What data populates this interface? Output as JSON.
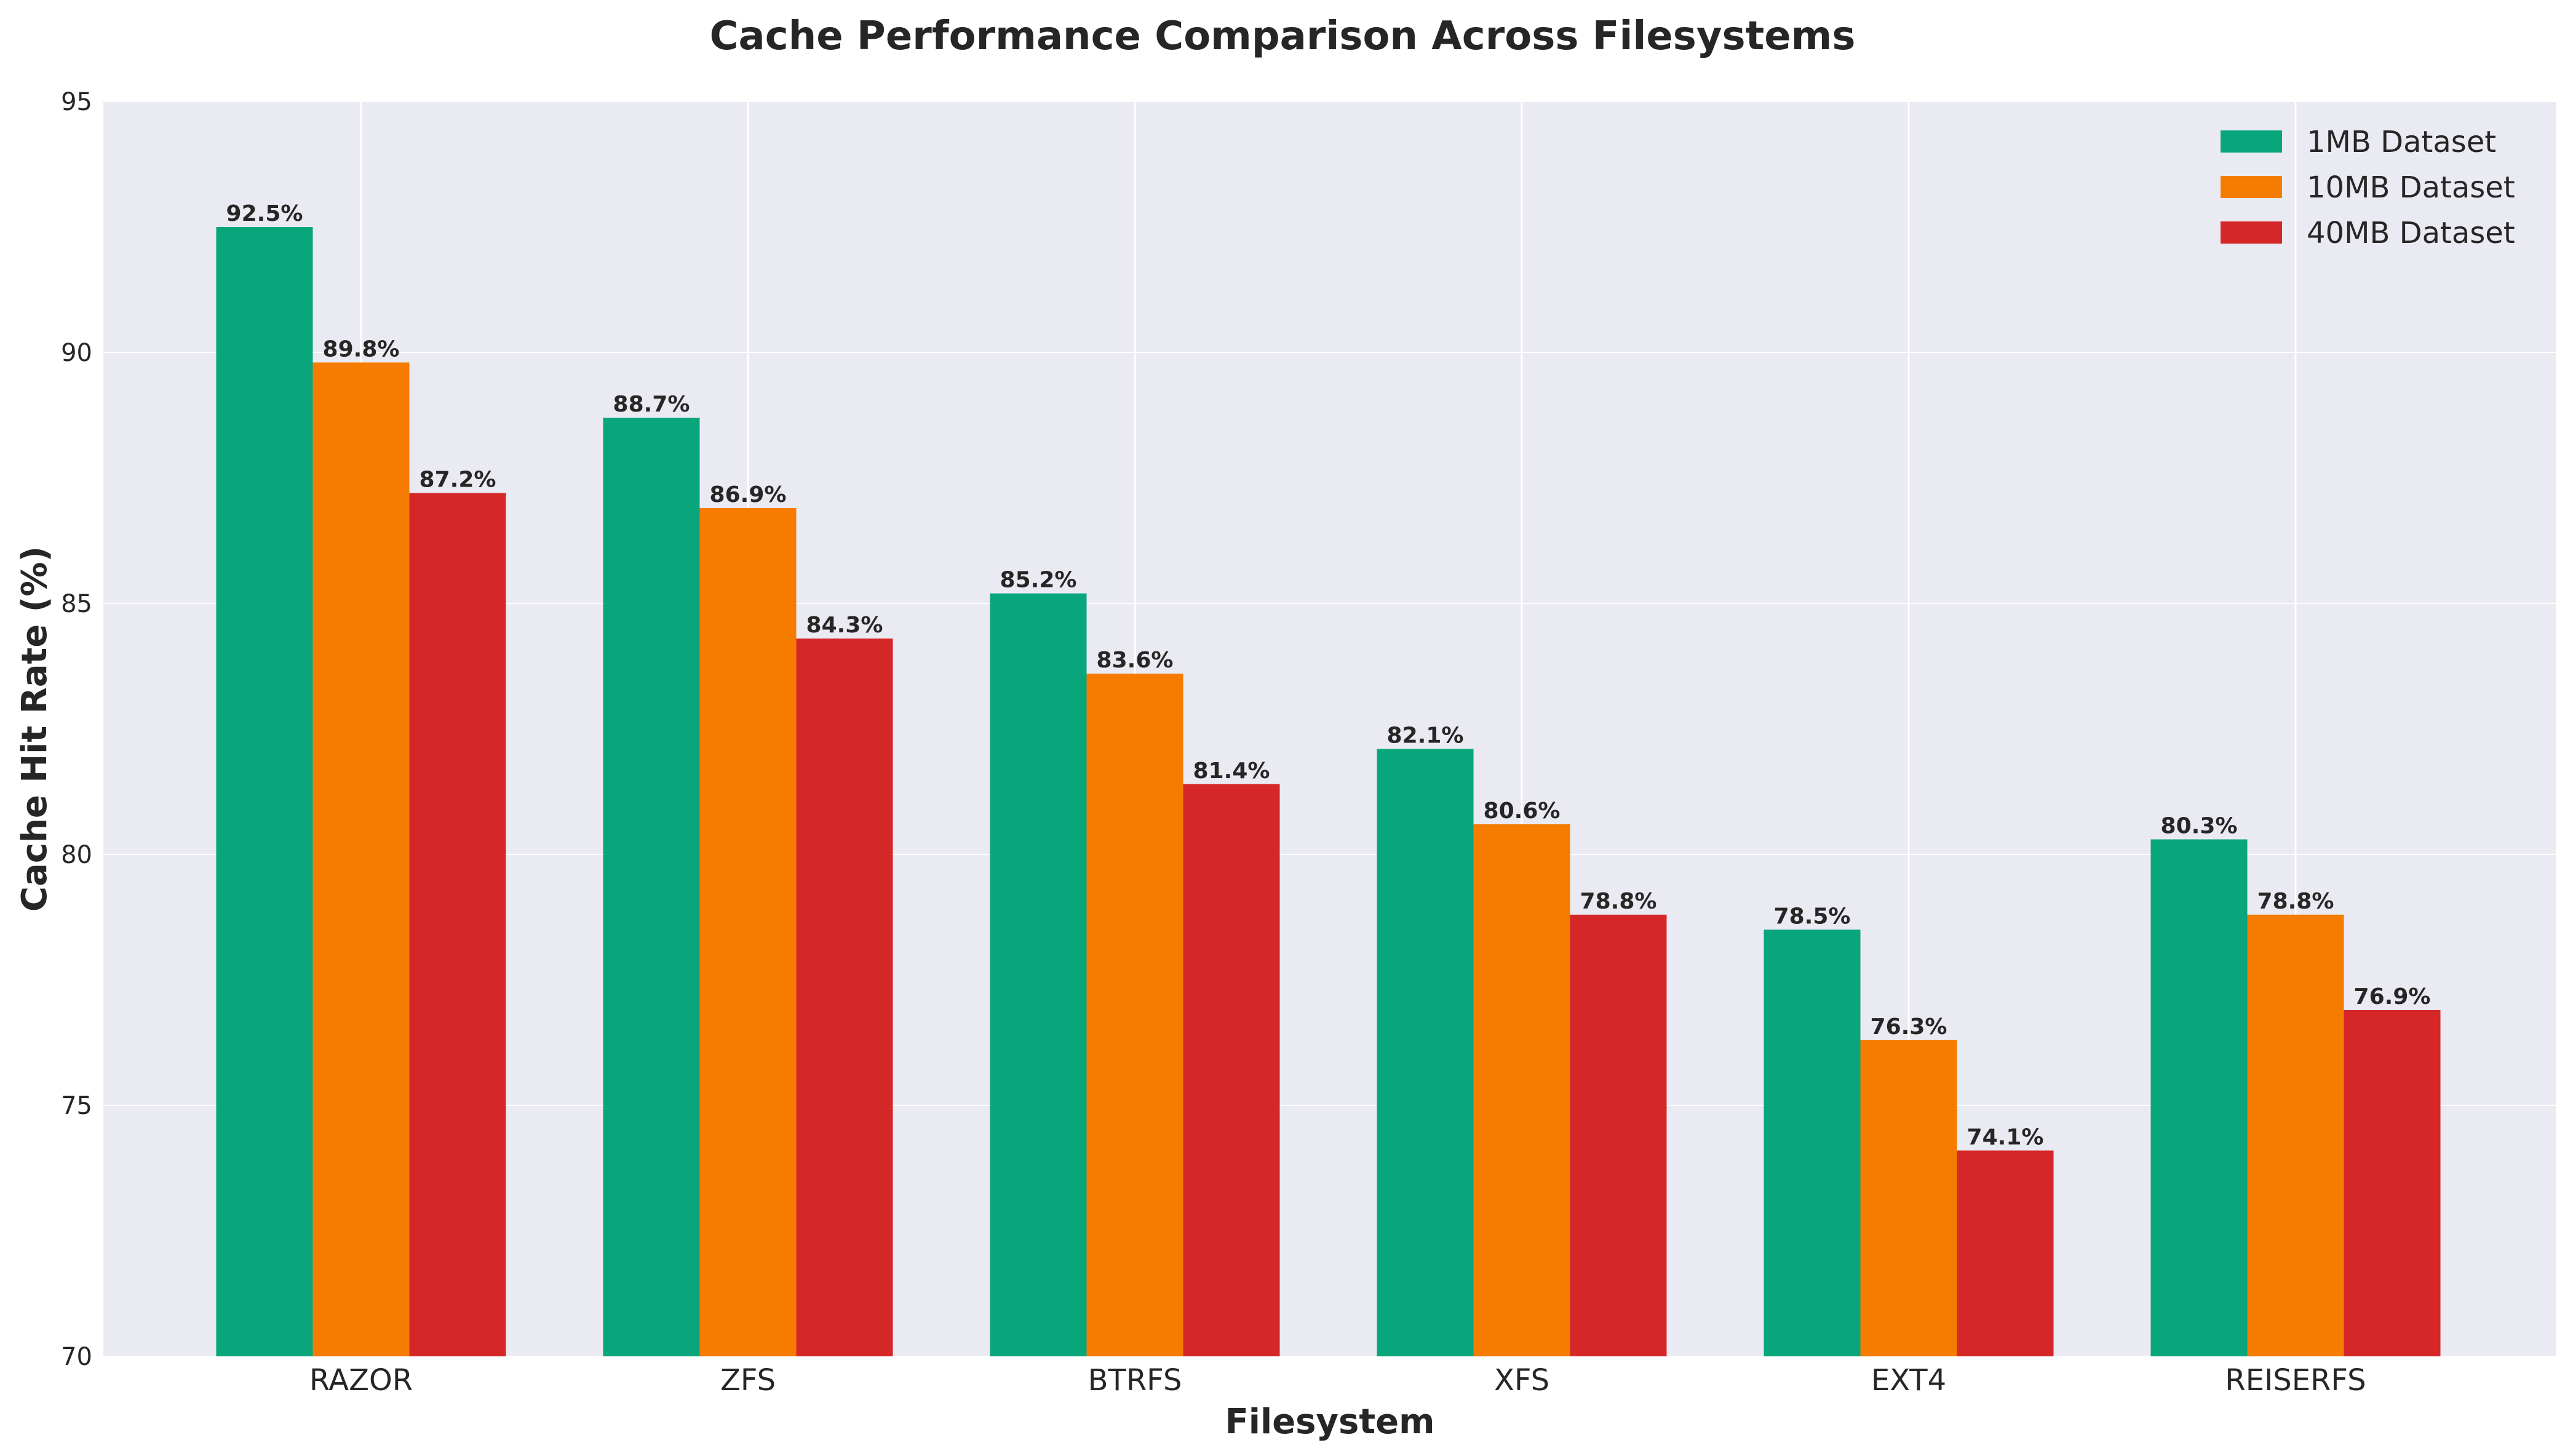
{
  "chart_data": {
    "type": "bar",
    "title": "Cache Performance Comparison Across Filesystems",
    "xlabel": "Filesystem",
    "ylabel": "Cache Hit Rate (%)",
    "ylim": [
      70,
      95
    ],
    "yticks": [
      "70",
      "75",
      "80",
      "85",
      "90",
      "95"
    ],
    "grid": true,
    "legend_position": "top-right",
    "categories": [
      "RAZOR",
      "ZFS",
      "BTRFS",
      "XFS",
      "EXT4",
      "REISERFS"
    ],
    "series": [
      {
        "name": "1MB Dataset",
        "color": "#09a67c",
        "values": [
          92.5,
          88.7,
          85.2,
          82.1,
          78.5,
          80.3
        ],
        "labels": [
          "92.5%",
          "88.7%",
          "85.2%",
          "82.1%",
          "78.5%",
          "80.3%"
        ]
      },
      {
        "name": "10MB Dataset",
        "color": "#f57c00",
        "values": [
          89.8,
          86.9,
          83.6,
          80.6,
          76.3,
          78.8
        ],
        "labels": [
          "89.8%",
          "86.9%",
          "83.6%",
          "80.6%",
          "76.3%",
          "78.8%"
        ]
      },
      {
        "name": "40MB Dataset",
        "color": "#d62728",
        "values": [
          87.2,
          84.3,
          81.4,
          78.8,
          74.1,
          76.9
        ],
        "labels": [
          "87.2%",
          "84.3%",
          "81.4%",
          "78.8%",
          "74.1%",
          "76.9%"
        ]
      }
    ]
  }
}
